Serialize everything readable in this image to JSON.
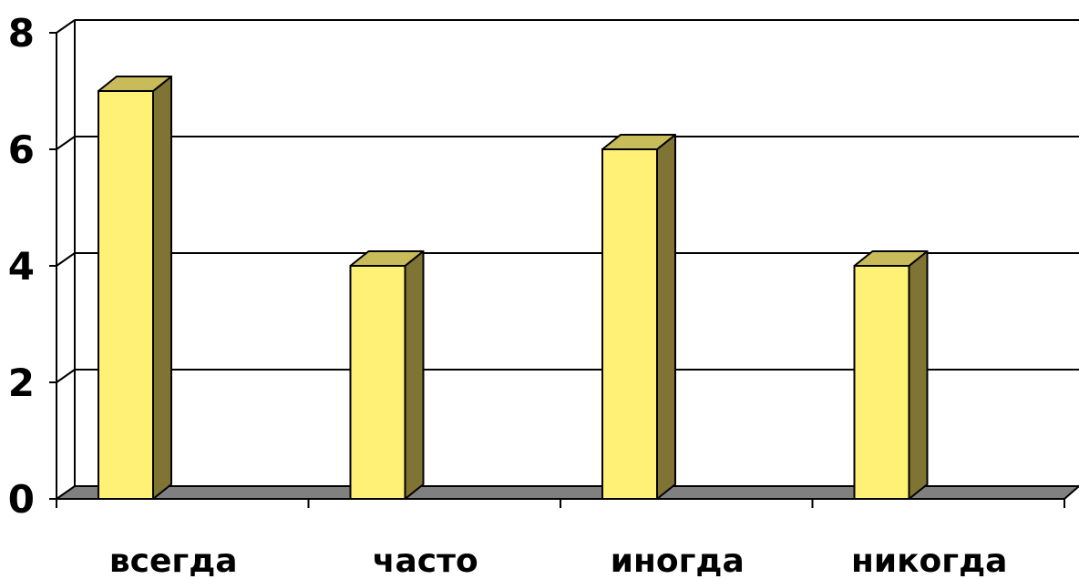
{
  "chart_data": {
    "type": "bar",
    "categories": [
      "всегда",
      "часто",
      "иногда",
      "никогда"
    ],
    "values": [
      7,
      4,
      6,
      4
    ],
    "ylim": [
      0,
      8
    ],
    "yticks": [
      "0",
      "2",
      "4",
      "6",
      "8"
    ],
    "grid": true,
    "style": "3d-column",
    "colors": {
      "bar_front": "#FFF176",
      "bar_side": "#7F7433",
      "bar_top": "#C8BC5A",
      "floor": "#808080",
      "grid": "#000000"
    }
  }
}
